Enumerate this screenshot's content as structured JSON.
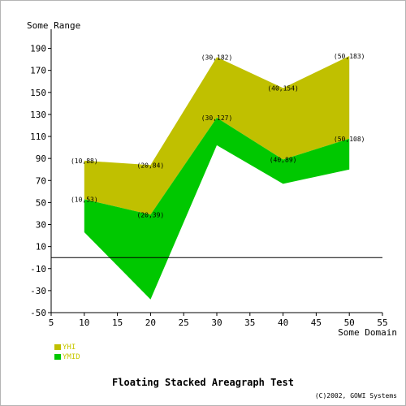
{
  "chart_data": {
    "type": "area",
    "subtype": "floating-stacked",
    "title": "Floating Stacked Areagraph Test",
    "ylabel": "Some Range",
    "xlabel": "Some Domain",
    "x": [
      10,
      20,
      30,
      40,
      50
    ],
    "xlim": [
      5,
      55
    ],
    "ylim": [
      -50,
      200
    ],
    "xticks": [
      "5",
      "10",
      "15",
      "20",
      "25",
      "30",
      "35",
      "40",
      "45",
      "50",
      "55"
    ],
    "yticks": [
      "-50",
      "-30",
      "-10",
      "10",
      "30",
      "50",
      "70",
      "90",
      "110",
      "130",
      "150",
      "170",
      "190"
    ],
    "zero_line": true,
    "grid": false,
    "legend_position": "bottom-left",
    "series": [
      {
        "name": "YHI",
        "color": "#c0c000",
        "values": [
          88,
          84,
          182,
          154,
          183
        ],
        "labels": [
          "(10,88)",
          "(20,84)",
          "(30,182)",
          "(40,154)",
          "(50,183)"
        ]
      },
      {
        "name": "YMID",
        "color": "#00c800",
        "values": [
          53,
          39,
          127,
          89,
          108
        ],
        "labels": [
          "(10,53)",
          "(20,39)",
          "(30,127)",
          "(40,89)",
          "(50,108)"
        ]
      }
    ],
    "floor_values": [
      23,
      -38,
      102,
      67,
      80
    ],
    "copyright": "(C)2002, GOWI Systems"
  }
}
